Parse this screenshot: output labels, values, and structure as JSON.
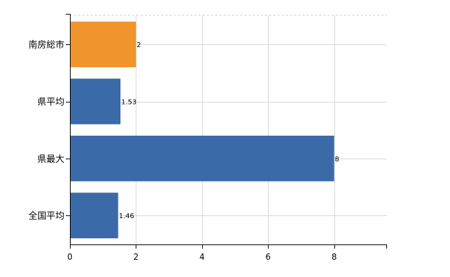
{
  "chart_data": {
    "type": "bar",
    "orientation": "horizontal",
    "categories": [
      "南房総市",
      "県平均",
      "県最大",
      "全国平均"
    ],
    "values": [
      2,
      1.53,
      8,
      1.46
    ],
    "data_labels": [
      "2",
      "1.53",
      "8",
      "1.46"
    ],
    "bar_colors": [
      "#f0942e",
      "#3b6aa8",
      "#3b6aa8",
      "#3b6aa8"
    ],
    "x_ticks": [
      0,
      2,
      4,
      6,
      8
    ],
    "xlim": [
      0,
      9.6
    ],
    "grid": true,
    "legend": "none",
    "title": "",
    "xlabel": "",
    "ylabel": ""
  }
}
